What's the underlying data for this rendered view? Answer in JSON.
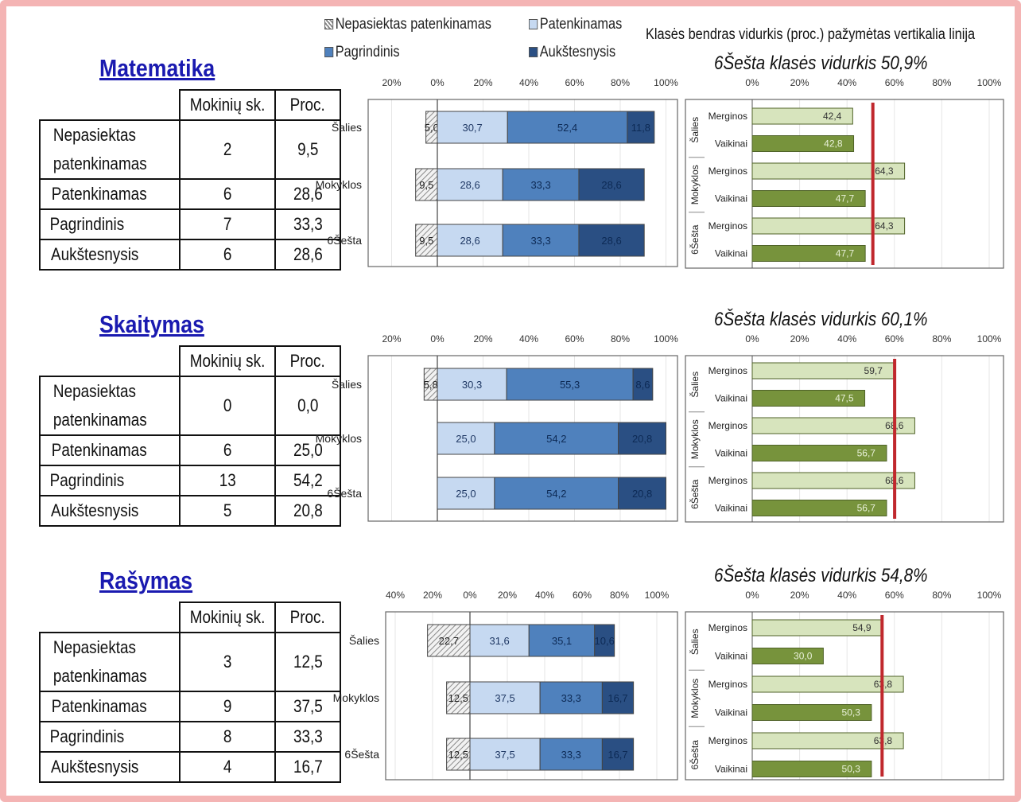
{
  "legend": {
    "items": [
      {
        "label": "Nepasiektas patenkinamas",
        "color": "#d9d9d9",
        "pattern": "hatch"
      },
      {
        "label": "Patenkinamas",
        "color": "#c6d9f1"
      },
      {
        "label": "Pagrindinis",
        "color": "#4f81bd"
      },
      {
        "label": "Aukštesnysis",
        "color": "#2a4f83"
      }
    ],
    "note": "Klasės bendras vidurkis (proc.) pažymėtas vertikalia linija"
  },
  "table_headers": {
    "count": "Mokinių sk.",
    "percent": "Proc."
  },
  "chart_data": [
    {
      "type": "table",
      "title": "Matematika",
      "columns": [
        "",
        "Mokinių sk.",
        "Proc."
      ],
      "rows": [
        {
          "label": "Nepasiektas patenkinamas",
          "count": "2",
          "percent": "9,5"
        },
        {
          "label": "Patenkinamas",
          "count": "6",
          "percent": "28,6"
        },
        {
          "label": "Pagrindinis",
          "count": "7",
          "percent": "33,3"
        },
        {
          "label": "Aukštesnysis",
          "count": "6",
          "percent": "28,6"
        }
      ]
    },
    {
      "type": "bar",
      "stacked": "diverging",
      "xlim": [
        -20,
        100
      ],
      "ticks": [
        "20%",
        "0%",
        "20%",
        "40%",
        "60%",
        "80%",
        "100%"
      ],
      "categories": [
        "Šalies",
        "Mokyklos",
        "6Šešta"
      ],
      "series": [
        {
          "name": "Nepasiektas patenkinamas",
          "values": [
            5.0,
            9.5,
            9.5
          ],
          "labels": [
            "5,0",
            "9,5",
            "9,5"
          ]
        },
        {
          "name": "Patenkinamas",
          "values": [
            30.7,
            28.6,
            28.6
          ],
          "labels": [
            "30,7",
            "28,6",
            "28,6"
          ]
        },
        {
          "name": "Pagrindinis",
          "values": [
            52.4,
            33.3,
            33.3
          ],
          "labels": [
            "52,4",
            "33,3",
            "33,3"
          ]
        },
        {
          "name": "Aukštesnysis",
          "values": [
            11.8,
            28.6,
            28.6
          ],
          "labels": [
            "11,8",
            "28,6",
            "28,6"
          ]
        }
      ]
    },
    {
      "type": "bar",
      "orientation": "horizontal",
      "title": "6Šešta klasės vidurkis 50,9%",
      "average": 50.9,
      "xlim": [
        0,
        100
      ],
      "ticks": [
        "0%",
        "20%",
        "40%",
        "60%",
        "80%",
        "100%"
      ],
      "groups": [
        "Šalies",
        "Mokyklos",
        "6Šešta"
      ],
      "rows": [
        {
          "group": "Šalies",
          "label": "Merginos",
          "value": 42.4,
          "text": "42,4"
        },
        {
          "group": "Šalies",
          "label": "Vaikinai",
          "value": 42.8,
          "text": "42,8"
        },
        {
          "group": "Mokyklos",
          "label": "Merginos",
          "value": 64.3,
          "text": "64,3"
        },
        {
          "group": "Mokyklos",
          "label": "Vaikinai",
          "value": 47.7,
          "text": "47,7"
        },
        {
          "group": "6Šešta",
          "label": "Merginos",
          "value": 64.3,
          "text": "64,3"
        },
        {
          "group": "6Šešta",
          "label": "Vaikinai",
          "value": 47.7,
          "text": "47,7"
        }
      ]
    },
    {
      "type": "table",
      "title": "Skaitymas",
      "columns": [
        "",
        "Mokinių sk.",
        "Proc."
      ],
      "rows": [
        {
          "label": "Nepasiektas patenkinamas",
          "count": "0",
          "percent": "0,0"
        },
        {
          "label": "Patenkinamas",
          "count": "6",
          "percent": "25,0"
        },
        {
          "label": "Pagrindinis",
          "count": "13",
          "percent": "54,2"
        },
        {
          "label": "Aukštesnysis",
          "count": "5",
          "percent": "20,8"
        }
      ]
    },
    {
      "type": "bar",
      "stacked": "diverging",
      "xlim": [
        -20,
        100
      ],
      "ticks": [
        "20%",
        "0%",
        "20%",
        "40%",
        "60%",
        "80%",
        "100%"
      ],
      "categories": [
        "Šalies",
        "Mokyklos",
        "6Šešta"
      ],
      "series": [
        {
          "name": "Nepasiektas patenkinamas",
          "values": [
            5.8,
            0,
            0
          ],
          "labels": [
            "5,8",
            "",
            ""
          ]
        },
        {
          "name": "Patenkinamas",
          "values": [
            30.3,
            25.0,
            25.0
          ],
          "labels": [
            "30,3",
            "25,0",
            "25,0"
          ]
        },
        {
          "name": "Pagrindinis",
          "values": [
            55.3,
            54.2,
            54.2
          ],
          "labels": [
            "55,3",
            "54,2",
            "54,2"
          ]
        },
        {
          "name": "Aukštesnysis",
          "values": [
            8.6,
            20.8,
            20.8
          ],
          "labels": [
            "8,6",
            "20,8",
            "20,8"
          ]
        }
      ]
    },
    {
      "type": "bar",
      "orientation": "horizontal",
      "title": "6Šešta klasės vidurkis 60,1%",
      "average": 60.1,
      "xlim": [
        0,
        100
      ],
      "ticks": [
        "0%",
        "20%",
        "40%",
        "60%",
        "80%",
        "100%"
      ],
      "groups": [
        "Šalies",
        "Mokyklos",
        "6Šešta"
      ],
      "rows": [
        {
          "group": "Šalies",
          "label": "Merginos",
          "value": 59.7,
          "text": "59,7"
        },
        {
          "group": "Šalies",
          "label": "Vaikinai",
          "value": 47.5,
          "text": "47,5"
        },
        {
          "group": "Mokyklos",
          "label": "Merginos",
          "value": 68.6,
          "text": "68,6"
        },
        {
          "group": "Mokyklos",
          "label": "Vaikinai",
          "value": 56.7,
          "text": "56,7"
        },
        {
          "group": "6Šešta",
          "label": "Merginos",
          "value": 68.6,
          "text": "68,6"
        },
        {
          "group": "6Šešta",
          "label": "Vaikinai",
          "value": 56.7,
          "text": "56,7"
        }
      ]
    },
    {
      "type": "table",
      "title": "Rašymas",
      "columns": [
        "",
        "Mokinių sk.",
        "Proc."
      ],
      "rows": [
        {
          "label": "Nepasiektas patenkinamas",
          "count": "3",
          "percent": "12,5"
        },
        {
          "label": "Patenkinamas",
          "count": "9",
          "percent": "37,5"
        },
        {
          "label": "Pagrindinis",
          "count": "8",
          "percent": "33,3"
        },
        {
          "label": "Aukštesnysis",
          "count": "4",
          "percent": "16,7"
        }
      ]
    },
    {
      "type": "bar",
      "stacked": "diverging",
      "xlim": [
        -40,
        100
      ],
      "ticks": [
        "40%",
        "20%",
        "0%",
        "20%",
        "40%",
        "60%",
        "80%",
        "100%"
      ],
      "categories": [
        "Šalies",
        "Mokyklos",
        "6Šešta"
      ],
      "series": [
        {
          "name": "Nepasiektas patenkinamas",
          "values": [
            22.7,
            12.5,
            12.5
          ],
          "labels": [
            "22,7",
            "12,5",
            "12,5"
          ]
        },
        {
          "name": "Patenkinamas",
          "values": [
            31.6,
            37.5,
            37.5
          ],
          "labels": [
            "31,6",
            "37,5",
            "37,5"
          ]
        },
        {
          "name": "Pagrindinis",
          "values": [
            35.1,
            33.3,
            33.3
          ],
          "labels": [
            "35,1",
            "33,3",
            "33,3"
          ]
        },
        {
          "name": "Aukštesnysis",
          "values": [
            10.6,
            16.7,
            16.7
          ],
          "labels": [
            "10,6",
            "16,7",
            "16,7"
          ]
        }
      ]
    },
    {
      "type": "bar",
      "orientation": "horizontal",
      "title": "6Šešta klasės vidurkis 54,8%",
      "average": 54.8,
      "xlim": [
        0,
        100
      ],
      "ticks": [
        "0%",
        "20%",
        "40%",
        "60%",
        "80%",
        "100%"
      ],
      "groups": [
        "Šalies",
        "Mokyklos",
        "6Šešta"
      ],
      "rows": [
        {
          "group": "Šalies",
          "label": "Merginos",
          "value": 54.9,
          "text": "54,9"
        },
        {
          "group": "Šalies",
          "label": "Vaikinai",
          "value": 30.0,
          "text": "30,0"
        },
        {
          "group": "Mokyklos",
          "label": "Merginos",
          "value": 63.8,
          "text": "63,8"
        },
        {
          "group": "Mokyklos",
          "label": "Vaikinai",
          "value": 50.3,
          "text": "50,3"
        },
        {
          "group": "6Šešta",
          "label": "Merginos",
          "value": 63.8,
          "text": "63,8"
        },
        {
          "group": "6Šešta",
          "label": "Vaikinai",
          "value": 50.3,
          "text": "50,3"
        }
      ]
    }
  ]
}
